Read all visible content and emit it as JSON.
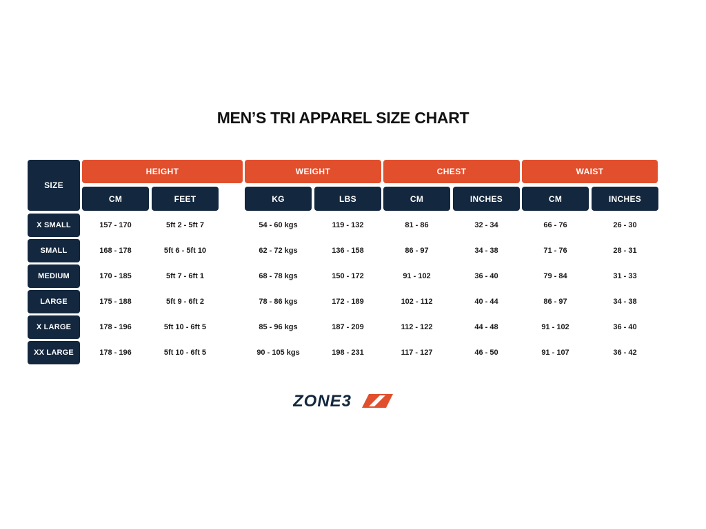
{
  "title": "MEN’S TRI APPAREL SIZE CHART",
  "size_header": "SIZE",
  "groups": [
    {
      "label": "HEIGHT",
      "subs": [
        "CM",
        "FEET"
      ]
    },
    {
      "label": "WEIGHT",
      "subs": [
        "KG",
        "LBS"
      ]
    },
    {
      "label": "CHEST",
      "subs": [
        "CM",
        "INCHES"
      ]
    },
    {
      "label": "WAIST",
      "subs": [
        "CM",
        "INCHES"
      ]
    }
  ],
  "rows": [
    {
      "size": "X SMALL",
      "values": [
        "157 - 170",
        "5ft 2 - 5ft 7",
        "54 - 60 kgs",
        "119 - 132",
        "81 - 86",
        "32 - 34",
        "66 - 76",
        "26 - 30"
      ]
    },
    {
      "size": "SMALL",
      "values": [
        "168 - 178",
        "5ft 6 - 5ft 10",
        "62 - 72 kgs",
        "136 - 158",
        "86 - 97",
        "34 - 38",
        "71 - 76",
        "28 - 31"
      ]
    },
    {
      "size": "MEDIUM",
      "values": [
        "170 - 185",
        "5ft 7 - 6ft 1",
        "68 - 78 kgs",
        "150 - 172",
        "91 - 102",
        "36 - 40",
        "79 - 84",
        "31 - 33"
      ]
    },
    {
      "size": "LARGE",
      "values": [
        "175 - 188",
        "5ft 9 - 6ft 2",
        "78 - 86 kgs",
        "172 - 189",
        "102 - 112",
        "40 - 44",
        "86 - 97",
        "34 - 38"
      ]
    },
    {
      "size": "X LARGE",
      "values": [
        "178 - 196",
        "5ft 10 - 6ft 5",
        "85 - 96 kgs",
        "187 - 209",
        "112 - 122",
        "44 - 48",
        "91 - 102",
        "36 - 40"
      ]
    },
    {
      "size": "XX LARGE",
      "values": [
        "178 - 196",
        "5ft 10 - 6ft 5",
        "90 - 105 kgs",
        "198 - 231",
        "117 - 127",
        "46 - 50",
        "91 - 107",
        "36 - 42"
      ]
    }
  ],
  "logo": {
    "text": "ZONE3",
    "icon": "zone3-slash-mark-icon",
    "colors": {
      "text": "#13273e",
      "mark": "#e24f2d"
    }
  },
  "colors": {
    "accent": "#e24f2d",
    "navy": "#13273e"
  }
}
